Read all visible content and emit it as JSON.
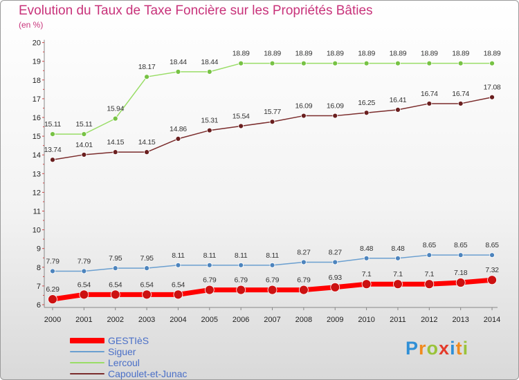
{
  "title": "Evolution du Taux de Taxe Foncière sur les Propriétés Bâties",
  "unit": "(en %)",
  "logo": {
    "letters": [
      "P",
      "r",
      "o",
      "x",
      "i",
      "t",
      "i"
    ],
    "colors": [
      "#2f8fd6",
      "#f08a1e",
      "#9ac33a",
      "#e43b2b",
      "#2f8fd6",
      "#f08a1e",
      "#9ac33a"
    ]
  },
  "chart_data": {
    "type": "line",
    "title": "Evolution du Taux de Taxe Foncière sur les Propriétés Bâties",
    "ylabel": "(en %)",
    "ylim": [
      6,
      20
    ],
    "yticks": [
      6,
      7,
      8,
      9,
      10,
      11,
      12,
      13,
      14,
      15,
      16,
      17,
      18,
      19,
      20
    ],
    "grid": false,
    "categories": [
      "2000",
      "2001",
      "2002",
      "2003",
      "2004",
      "2005",
      "2006",
      "2007",
      "2008",
      "2009",
      "2010",
      "2011",
      "2012",
      "2013",
      "2014"
    ],
    "series": [
      {
        "name": "GESTIèS",
        "color": "#ff0000",
        "values": [
          6.29,
          6.54,
          6.54,
          6.54,
          6.54,
          6.79,
          6.79,
          6.79,
          6.79,
          6.93,
          7.1,
          7.1,
          7.1,
          7.18,
          7.32
        ],
        "labels": [
          "6.29",
          "6.54",
          "6.54",
          "6.54",
          "6.54",
          "6.79",
          "6.79",
          "6.79",
          "6.79",
          "6.93",
          "7.1",
          "7.1",
          "7.1",
          "7.18",
          "7.32"
        ]
      },
      {
        "name": "Siguer",
        "color": "#6a9fd0",
        "values": [
          7.79,
          7.79,
          7.95,
          7.95,
          8.11,
          8.11,
          8.11,
          8.11,
          8.27,
          8.27,
          8.48,
          8.48,
          8.65,
          8.65,
          8.65
        ],
        "labels": [
          "7.79",
          "7.79",
          "7.95",
          "7.95",
          "8.11",
          "8.11",
          "8.11",
          "8.11",
          "8.27",
          "8.27",
          "8.48",
          "8.48",
          "8.65",
          "8.65",
          "8.65"
        ]
      },
      {
        "name": "Lercoul",
        "color": "#99dd66",
        "values": [
          15.11,
          15.11,
          15.94,
          18.17,
          18.44,
          18.44,
          18.89,
          18.89,
          18.89,
          18.89,
          18.89,
          18.89,
          18.89,
          18.89,
          18.89
        ],
        "labels": [
          "15.11",
          "15.11",
          "15.94",
          "18.17",
          "18.44",
          "18.44",
          "18.89",
          "18.89",
          "18.89",
          "18.89",
          "18.89",
          "18.89",
          "18.89",
          "18.89",
          "18.89"
        ]
      },
      {
        "name": "Capoulet-et-Junac",
        "color": "#7a2b2b",
        "values": [
          13.74,
          14.01,
          14.15,
          14.15,
          14.86,
          15.31,
          15.54,
          15.77,
          16.09,
          16.09,
          16.25,
          16.41,
          16.74,
          16.74,
          17.08
        ],
        "labels": [
          "13.74",
          "14.01",
          "14.15",
          "14.15",
          "14.86",
          "15.31",
          "15.54",
          "15.77",
          "16.09",
          "16.09",
          "16.25",
          "16.41",
          "16.74",
          "16.74",
          "17.08"
        ]
      }
    ]
  }
}
